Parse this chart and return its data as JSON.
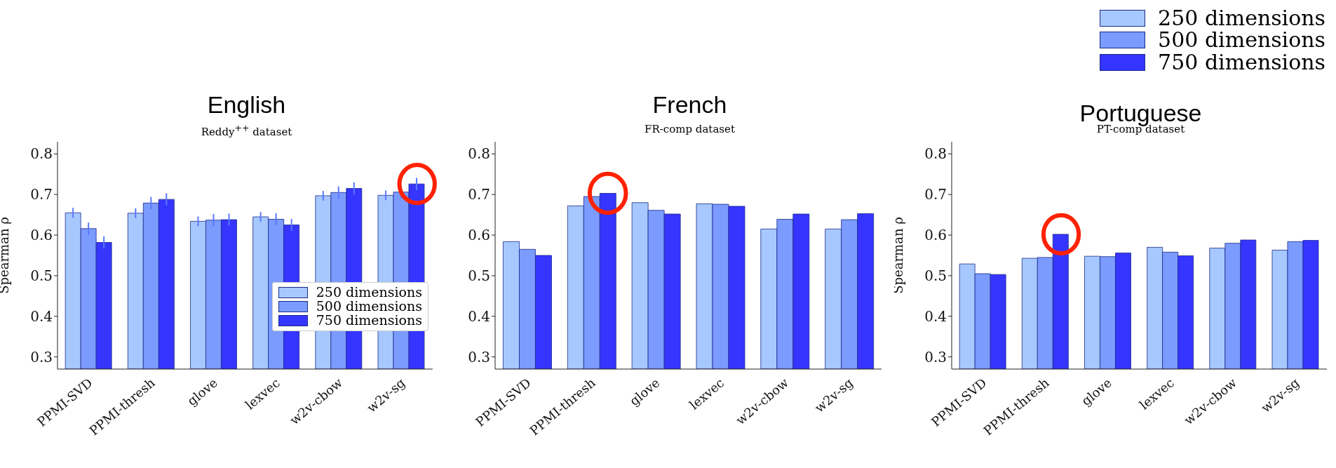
{
  "chart_data": [
    {
      "type": "bar",
      "title": "English",
      "subtitle": "Reddy$^{++}$ dataset",
      "ylabel": "Spearman ρ",
      "categories": [
        "PPMI-SVD",
        "PPMI-thresh",
        "glove",
        "lexvec",
        "w2v-cbow",
        "w2v-sg"
      ],
      "ylim": [
        0.27,
        0.83
      ],
      "yticks": [
        0.3,
        0.4,
        0.5,
        0.6,
        0.7,
        0.8
      ],
      "legend": "bottom right",
      "series": [
        {
          "name": "250 dimensions",
          "color": "#a6c8ff",
          "values": [
            0.655,
            0.654,
            0.634,
            0.645,
            0.697,
            0.698
          ],
          "errors": [
            0.012,
            0.012,
            0.012,
            0.012,
            0.012,
            0.012
          ]
        },
        {
          "name": "500 dimensions",
          "color": "#7b9bff",
          "values": [
            0.616,
            0.679,
            0.637,
            0.639,
            0.705,
            0.706
          ],
          "errors": [
            0.015,
            0.015,
            0.015,
            0.015,
            0.015,
            0.015
          ]
        },
        {
          "name": "750 dimensions",
          "color": "#3535ff",
          "values": [
            0.582,
            0.688,
            0.638,
            0.625,
            0.715,
            0.726
          ],
          "errors": [
            0.015,
            0.015,
            0.015,
            0.015,
            0.015,
            0.015
          ]
        }
      ]
    },
    {
      "type": "bar",
      "title": "French",
      "subtitle": "FR-comp dataset",
      "categories": [
        "PPMI-SVD",
        "PPMI-thresh",
        "glove",
        "lexvec",
        "w2v-cbow",
        "w2v-sg"
      ],
      "ylim": [
        0.27,
        0.83
      ],
      "yticks": [
        0.3,
        0.4,
        0.5,
        0.6,
        0.7,
        0.8
      ],
      "series": [
        {
          "color": "#a6c8ff",
          "values": [
            0.584,
            0.672,
            0.68,
            0.677,
            0.615,
            0.615
          ]
        },
        {
          "color": "#7b9bff",
          "values": [
            0.565,
            0.695,
            0.661,
            0.676,
            0.639,
            0.638
          ]
        },
        {
          "color": "#3535ff",
          "values": [
            0.55,
            0.703,
            0.652,
            0.671,
            0.652,
            0.653
          ]
        }
      ]
    },
    {
      "type": "bar",
      "title": "Portuguese",
      "subtitle": "PT-comp dataset",
      "ylabel": "Spearman ρ",
      "categories": [
        "PPMI-SVD",
        "PPMI-thresh",
        "glove",
        "lexvec",
        "w2v-cbow",
        "w2v-sg"
      ],
      "ylim": [
        0.27,
        0.83
      ],
      "yticks": [
        0.3,
        0.4,
        0.5,
        0.6,
        0.7,
        0.8
      ],
      "legend": "top right",
      "series": [
        {
          "name": "250 dimensions",
          "color": "#a6c8ff",
          "values": [
            0.529,
            0.543,
            0.548,
            0.57,
            0.568,
            0.563
          ]
        },
        {
          "name": "500 dimensions",
          "color": "#7b9bff",
          "values": [
            0.505,
            0.545,
            0.547,
            0.558,
            0.58,
            0.584
          ]
        },
        {
          "name": "750 dimensions",
          "color": "#3535ff",
          "values": [
            0.503,
            0.602,
            0.556,
            0.549,
            0.588,
            0.587
          ]
        }
      ]
    }
  ]
}
